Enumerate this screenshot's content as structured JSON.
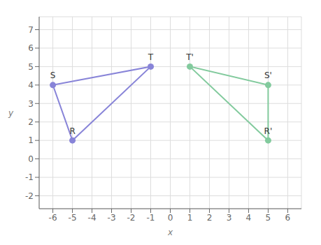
{
  "chart_data": {
    "type": "scatter",
    "x_label": "x",
    "y_label": "y",
    "xlim": [
      -6.7,
      6.7
    ],
    "ylim": [
      -2.7,
      7.7
    ],
    "xticks": [
      -6,
      -5,
      -4,
      -3,
      -2,
      -1,
      0,
      1,
      2,
      3,
      4,
      5,
      6
    ],
    "yticks": [
      -2,
      -1,
      0,
      1,
      2,
      3,
      4,
      5,
      6,
      7
    ],
    "grid": true,
    "line_style": "solid",
    "series": [
      {
        "x": [
          -5,
          -6,
          -1
        ],
        "y": [
          1,
          4,
          5
        ],
        "labels": [
          "R",
          "S",
          "T"
        ]
      },
      {
        "x": [
          5,
          5,
          1
        ],
        "y": [
          1,
          4,
          5
        ],
        "labels": [
          "R'",
          "S'",
          "T'"
        ]
      }
    ]
  }
}
